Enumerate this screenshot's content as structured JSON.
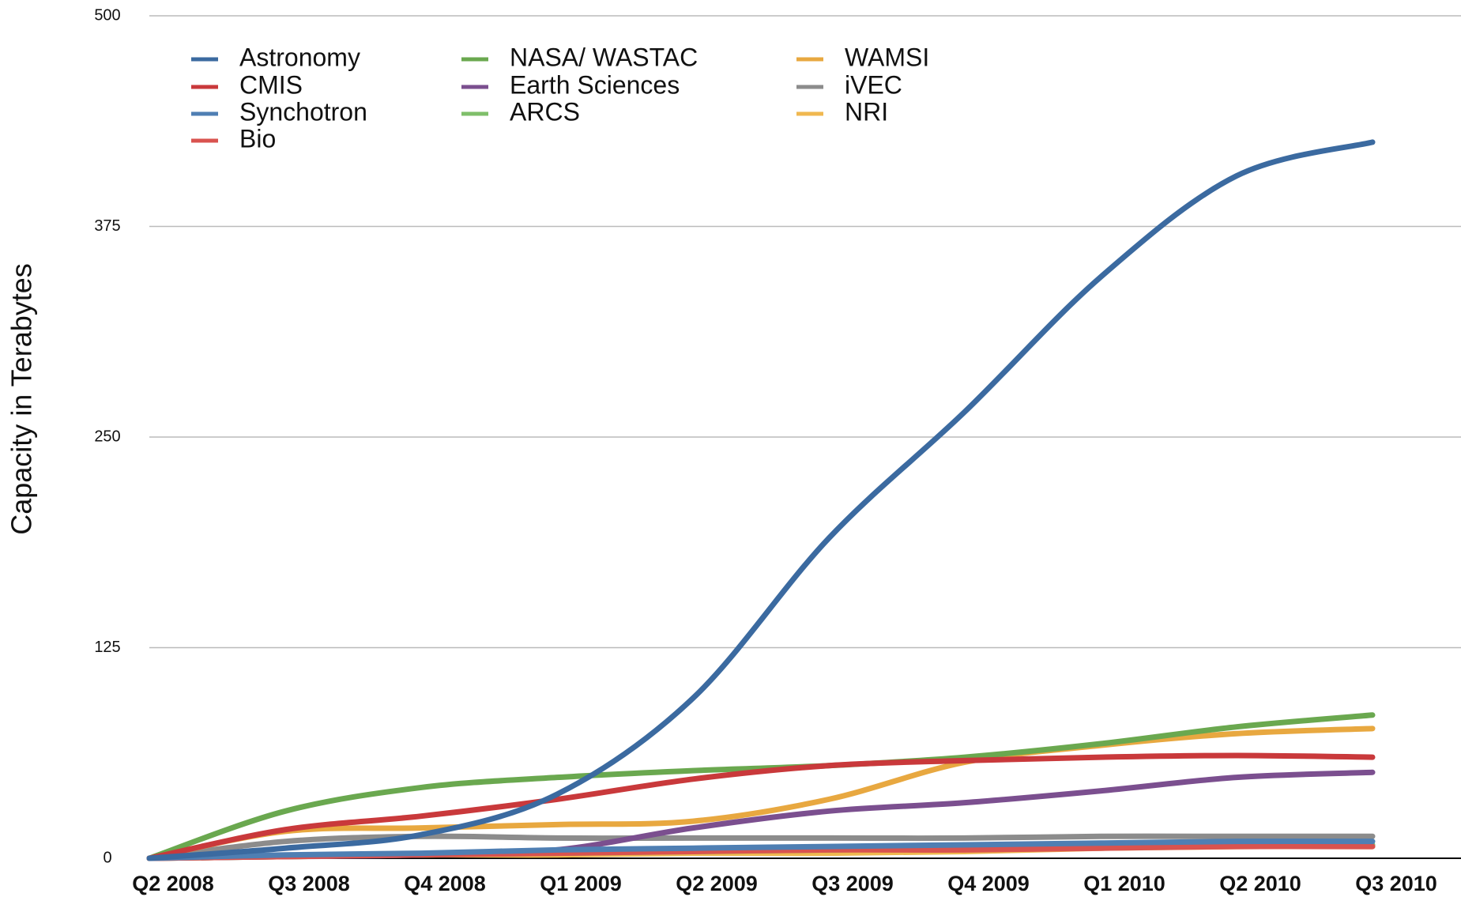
{
  "chart_data": {
    "type": "line",
    "ylabel": "Capacity in Terabytes",
    "categories": [
      "Q2 2008",
      "Q3 2008",
      "Q4 2008",
      "Q1 2009",
      "Q2 2009",
      "Q3 2009",
      "Q4 2009",
      "Q1 2010",
      "Q2 2010",
      "Q3 2010"
    ],
    "series": [
      {
        "name": "Astronomy",
        "color": "#3b6aa0",
        "values": [
          0,
          6,
          14,
          38,
          95,
          190,
          265,
          345,
          405,
          425
        ]
      },
      {
        "name": "CMIS",
        "color": "#c9393b",
        "values": [
          0,
          17,
          25,
          35,
          47,
          55,
          58,
          60,
          61,
          60
        ]
      },
      {
        "name": "Synchotron",
        "color": "#4f7fb3",
        "values": [
          0,
          2,
          3,
          5,
          6,
          7,
          8,
          9,
          10,
          10
        ]
      },
      {
        "name": "Bio",
        "color": "#d9534f",
        "values": [
          0,
          1,
          2,
          3,
          4,
          5,
          5,
          6,
          7,
          7
        ]
      },
      {
        "name": "NASA/ WASTAC",
        "color": "#6aa84f",
        "values": [
          0,
          28,
          42,
          48,
          52,
          55,
          60,
          68,
          78,
          85
        ]
      },
      {
        "name": "Earth Sciences",
        "color": "#7b4f8f",
        "values": [
          0,
          1,
          2,
          5,
          18,
          28,
          33,
          40,
          48,
          51
        ]
      },
      {
        "name": "ARCS",
        "color": "#7fbf6a",
        "values": [
          0,
          1,
          2,
          3,
          4,
          5,
          6,
          7,
          8,
          8
        ]
      },
      {
        "name": "WAMSI",
        "color": "#e8a840",
        "values": [
          0,
          16,
          18,
          20,
          22,
          35,
          57,
          67,
          74,
          77
        ]
      },
      {
        "name": "iVEC",
        "color": "#8c8c8c",
        "values": [
          0,
          10,
          13,
          12,
          12,
          12,
          12,
          13,
          13,
          13
        ]
      },
      {
        "name": "NRI",
        "color": "#f0b850",
        "values": [
          0,
          1,
          2,
          2,
          3,
          3,
          4,
          6,
          7,
          7
        ]
      }
    ],
    "ylim": [
      0,
      500
    ],
    "yticks": [
      0,
      125,
      250,
      375,
      500
    ],
    "grid": true
  }
}
